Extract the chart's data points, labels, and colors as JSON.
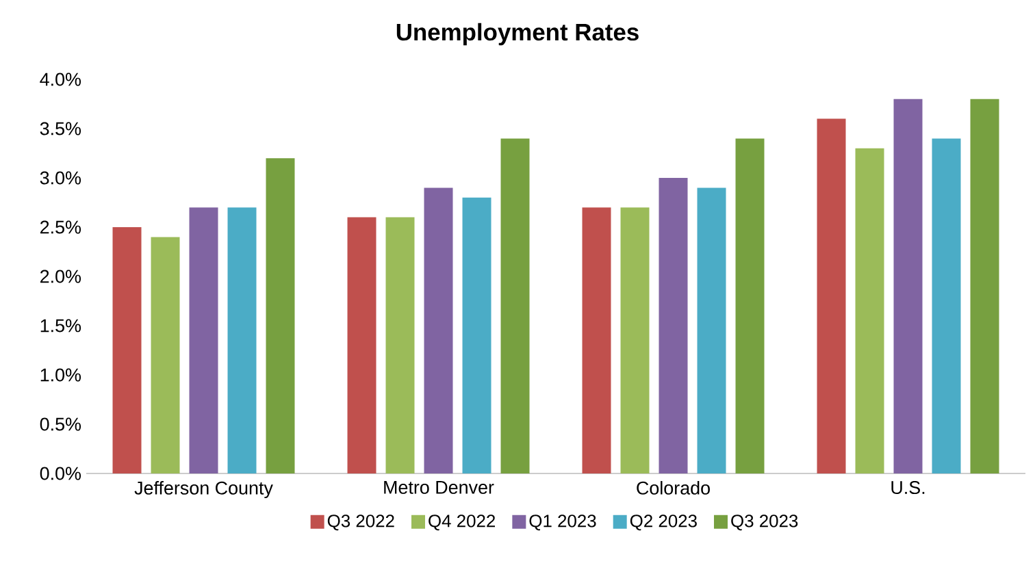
{
  "chart_data": {
    "type": "bar",
    "title": "Unemployment Rates",
    "categories": [
      "Jefferson County",
      "Metro Denver",
      "Colorado",
      "U.S."
    ],
    "series": [
      {
        "name": "Q3 2022",
        "color": "#c0504d",
        "values": [
          2.5,
          2.6,
          2.7,
          3.6
        ]
      },
      {
        "name": "Q4 2022",
        "color": "#9bbb59",
        "values": [
          2.4,
          2.6,
          2.7,
          3.3
        ]
      },
      {
        "name": "Q1 2023",
        "color": "#8064a2",
        "values": [
          2.7,
          2.9,
          3.0,
          3.8
        ]
      },
      {
        "name": "Q2 2023",
        "color": "#4bacc6",
        "values": [
          2.7,
          2.8,
          2.9,
          3.4
        ]
      },
      {
        "name": "Q3 2023",
        "color": "#77a040",
        "values": [
          3.2,
          3.4,
          3.4,
          3.8
        ]
      }
    ],
    "ylim": [
      0,
      4
    ],
    "yticks": [
      {
        "value": 0,
        "label": "0.0%"
      },
      {
        "value": 0.5,
        "label": "0.5%"
      },
      {
        "value": 1,
        "label": "1.0%"
      },
      {
        "value": 1.5,
        "label": "1.5%"
      },
      {
        "value": 2,
        "label": "2.0%"
      },
      {
        "value": 2.5,
        "label": "2.5%"
      },
      {
        "value": 3,
        "label": "3.0%"
      },
      {
        "value": 3.5,
        "label": "3.5%"
      },
      {
        "value": 4,
        "label": "4.0%"
      }
    ],
    "legend": "bottom",
    "grid": false
  }
}
